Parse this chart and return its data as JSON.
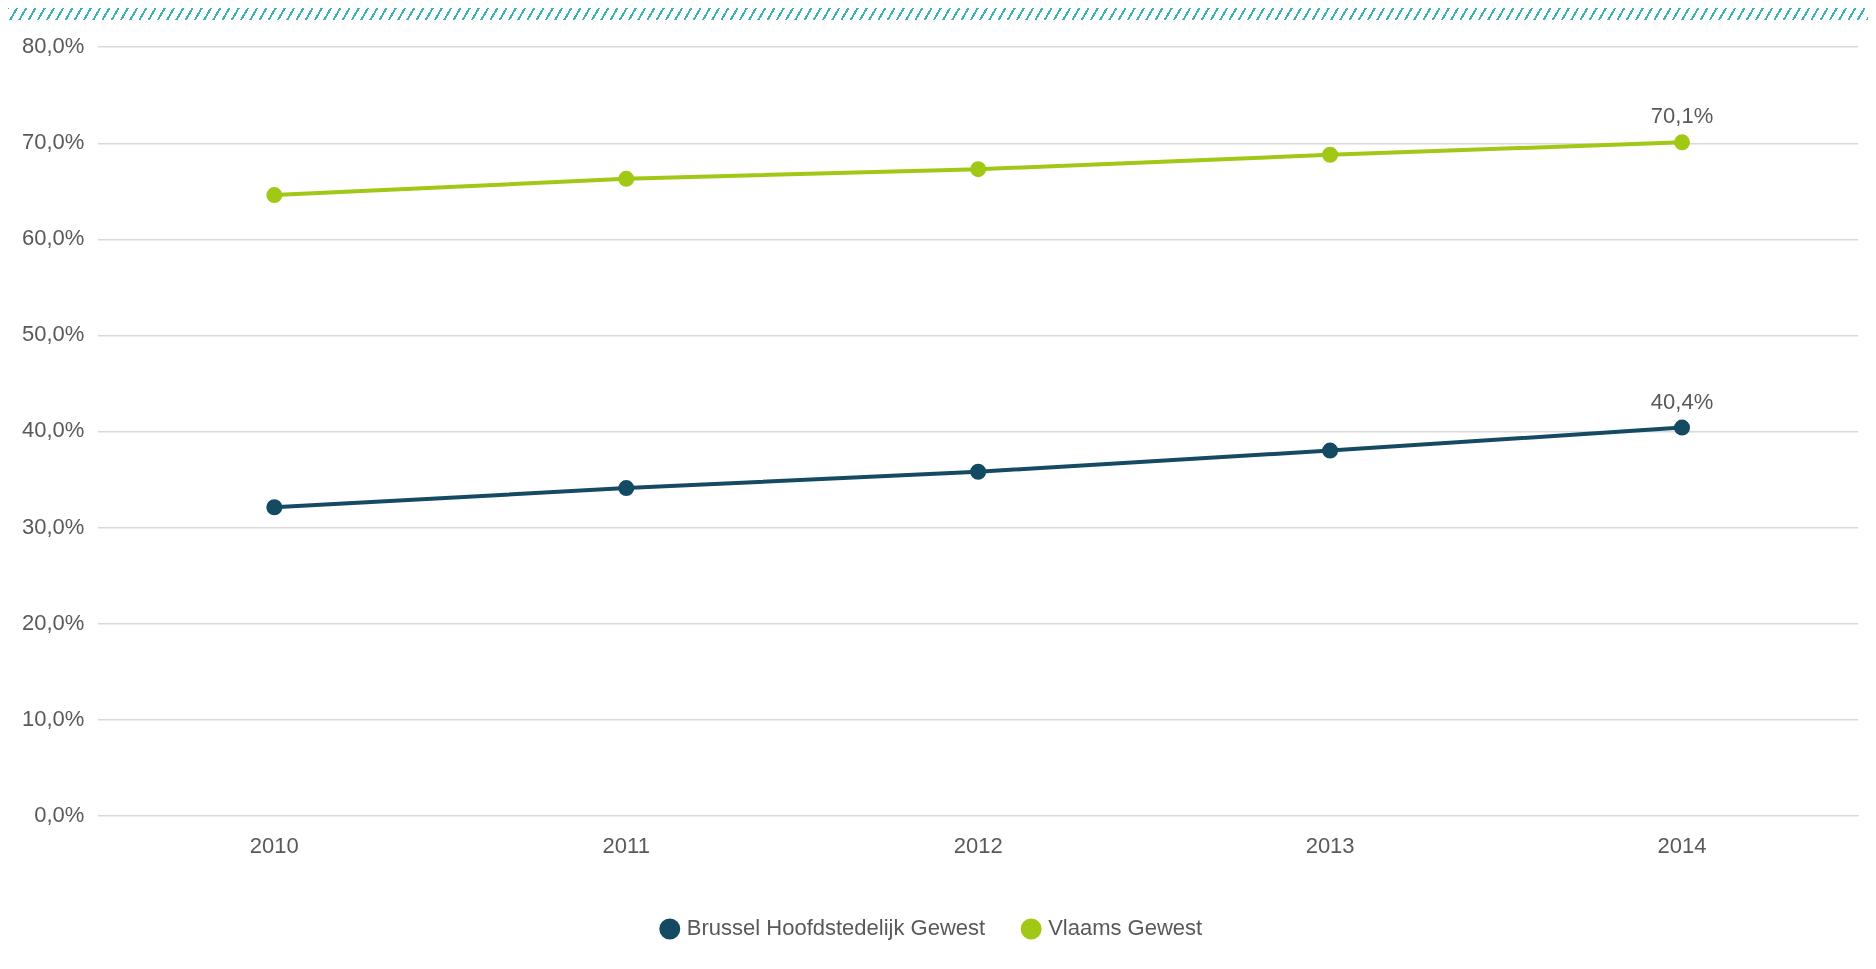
{
  "chart_data": {
    "type": "line",
    "categories": [
      "2010",
      "2011",
      "2012",
      "2013",
      "2014"
    ],
    "series": [
      {
        "name": "Brussel Hoofdstedelijk Gewest",
        "color": "#154a63",
        "values": [
          32.1,
          34.1,
          35.8,
          38.0,
          40.4
        ],
        "value_labels": [
          null,
          null,
          null,
          null,
          "40,4%"
        ]
      },
      {
        "name": "Vlaams Gewest",
        "color": "#a0c814",
        "values": [
          64.6,
          66.3,
          67.3,
          68.8,
          70.1
        ],
        "value_labels": [
          null,
          null,
          null,
          null,
          "70,1%"
        ]
      }
    ],
    "ylim": [
      0,
      80
    ],
    "yticks": [
      {
        "value": 0,
        "label": "0,0%"
      },
      {
        "value": 10,
        "label": "10,0%"
      },
      {
        "value": 20,
        "label": "20,0%"
      },
      {
        "value": 30,
        "label": "30,0%"
      },
      {
        "value": 40,
        "label": "40,0%"
      },
      {
        "value": 50,
        "label": "50,0%"
      },
      {
        "value": 60,
        "label": "60,0%"
      },
      {
        "value": 70,
        "label": "70,0%"
      },
      {
        "value": 80,
        "label": "80,0%"
      }
    ],
    "grid": "y",
    "legend": "bottom",
    "marker": "circle",
    "line_style": "solid"
  }
}
